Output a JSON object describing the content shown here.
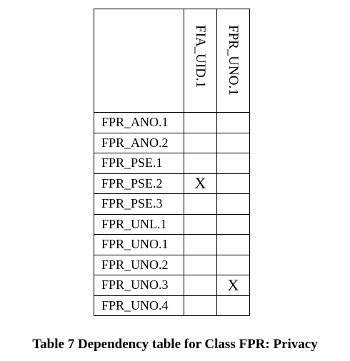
{
  "table": {
    "columns": [
      "FIA_UID.1",
      "FPR_UNO.1"
    ],
    "rows": [
      {
        "label": "FPR_ANO.1",
        "marks": [
          "",
          ""
        ]
      },
      {
        "label": "FPR_ANO.2",
        "marks": [
          "",
          ""
        ]
      },
      {
        "label": "FPR_PSE.1",
        "marks": [
          "",
          ""
        ]
      },
      {
        "label": "FPR_PSE.2",
        "marks": [
          "X",
          ""
        ]
      },
      {
        "label": "FPR_PSE.3",
        "marks": [
          "",
          ""
        ]
      },
      {
        "label": "FPR_UNL.1",
        "marks": [
          "",
          ""
        ]
      },
      {
        "label": "FPR_UNO.1",
        "marks": [
          "",
          ""
        ]
      },
      {
        "label": "FPR_UNO.2",
        "marks": [
          "",
          ""
        ]
      },
      {
        "label": "FPR_UNO.3",
        "marks": [
          "",
          "X"
        ]
      },
      {
        "label": "FPR_UNO.4",
        "marks": [
          "",
          ""
        ]
      }
    ]
  },
  "caption": "Table 7 Dependency table for Class FPR: Privacy"
}
